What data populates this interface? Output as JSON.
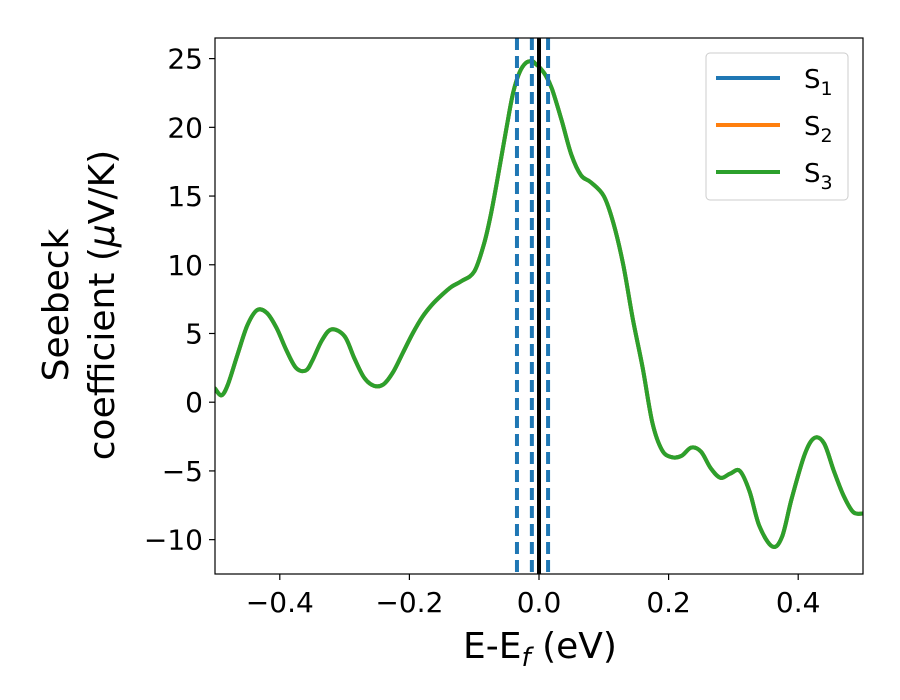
{
  "chart_data": {
    "type": "line",
    "xlabel": {
      "main": "E-E",
      "sub": "f",
      "tail": " (eV)"
    },
    "ylabel": {
      "line1": "Seebeck",
      "line2_pre": "coefficient  (",
      "line2_mu": "μ",
      "line2_post": "V/K)"
    },
    "xlim": [
      -0.5,
      0.5
    ],
    "ylim": [
      -12.5,
      26.5
    ],
    "xticks": [
      -0.4,
      -0.2,
      0.0,
      0.2,
      0.4
    ],
    "xtick_labels": [
      "−0.4",
      "−0.2",
      "0.0",
      "0.2",
      "0.4"
    ],
    "yticks": [
      -10,
      -5,
      0,
      5,
      10,
      15,
      20,
      25
    ],
    "ytick_labels": [
      "−10",
      "−5",
      "0",
      "5",
      "10",
      "15",
      "20",
      "25"
    ],
    "legend_position": "top-right",
    "series": [
      {
        "name": "S",
        "sub": "1",
        "color": "#1f77b4"
      },
      {
        "name": "S",
        "sub": "2",
        "color": "#ff7f0e"
      },
      {
        "name": "S",
        "sub": "3",
        "color": "#2ca02c"
      }
    ],
    "curve": {
      "x": [
        -0.5,
        -0.49,
        -0.48,
        -0.465,
        -0.45,
        -0.435,
        -0.42,
        -0.405,
        -0.39,
        -0.375,
        -0.36,
        -0.35,
        -0.335,
        -0.32,
        -0.3,
        -0.285,
        -0.27,
        -0.255,
        -0.24,
        -0.225,
        -0.21,
        -0.195,
        -0.18,
        -0.165,
        -0.15,
        -0.135,
        -0.12,
        -0.1,
        -0.085,
        -0.075,
        -0.065,
        -0.05,
        -0.04,
        -0.03,
        -0.02,
        -0.01,
        -0.005,
        0.0,
        0.01,
        0.02,
        0.035,
        0.05,
        0.065,
        0.08,
        0.1,
        0.115,
        0.13,
        0.145,
        0.16,
        0.175,
        0.19,
        0.205,
        0.22,
        0.235,
        0.25,
        0.265,
        0.28,
        0.295,
        0.31,
        0.325,
        0.34,
        0.36,
        0.375,
        0.39,
        0.41,
        0.425,
        0.44,
        0.455,
        0.47,
        0.485,
        0.5
      ],
      "y": [
        1.0,
        0.5,
        1.3,
        3.5,
        5.6,
        6.7,
        6.5,
        5.4,
        3.8,
        2.5,
        2.3,
        3.0,
        4.5,
        5.3,
        4.8,
        3.2,
        1.8,
        1.2,
        1.3,
        2.2,
        3.6,
        5.0,
        6.2,
        7.1,
        7.8,
        8.4,
        8.8,
        9.5,
        11.5,
        13.5,
        16.0,
        20.0,
        22.5,
        24.0,
        24.7,
        24.8,
        24.6,
        24.4,
        23.8,
        22.8,
        20.5,
        18.0,
        16.5,
        16.0,
        15.0,
        13.0,
        10.0,
        6.0,
        2.5,
        -1.5,
        -3.5,
        -4.0,
        -3.9,
        -3.3,
        -3.6,
        -4.8,
        -5.5,
        -5.2,
        -5.0,
        -6.5,
        -9.0,
        -10.5,
        -9.8,
        -7.0,
        -3.8,
        -2.6,
        -3.0,
        -5.0,
        -6.8,
        -8.0,
        -8.1
      ]
    },
    "vlines": {
      "dashed_x": [
        -0.034,
        -0.011,
        0.014
      ],
      "dashed_color": "#1f77b4",
      "solid_x": [
        0.0
      ],
      "solid_color": "#000000"
    }
  }
}
